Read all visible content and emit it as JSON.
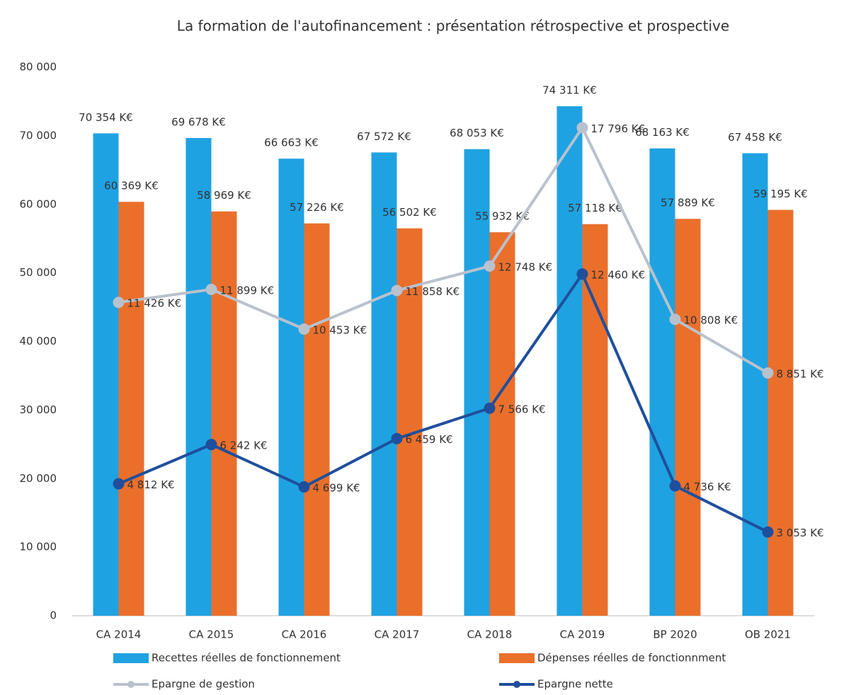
{
  "chart_data": {
    "type": "bar",
    "title": "La formation de l'autofinancement : présentation rétrospective et prospective",
    "categories": [
      "CA 2014",
      "CA 2015",
      "CA 2016",
      "CA 2017",
      "CA 2018",
      "CA 2019",
      "BP 2020",
      "OB 2021"
    ],
    "ylim": [
      0,
      80000
    ],
    "yticks": [
      0,
      {
        "value": 10000,
        "label": "10 000"
      },
      {
        "value": 20000,
        "label": "20 000"
      },
      {
        "value": 30000,
        "label": "30 000"
      },
      {
        "value": 40000,
        "label": "40 000"
      },
      {
        "value": 50000,
        "label": "50 000"
      },
      {
        "value": 60000,
        "label": "60 000"
      },
      {
        "value": 70000,
        "label": "70 000"
      },
      {
        "value": 80000,
        "label": "80 000"
      }
    ],
    "y2lim": [
      0,
      20000
    ],
    "series": [
      {
        "name": "Recettes réelles de fonctionnement",
        "type": "bar",
        "color": "#1fa2e2",
        "values": [
          70354,
          69678,
          66663,
          67572,
          68053,
          74311,
          68163,
          67458
        ],
        "value_labels": [
          "70 354 K€",
          "69 678 K€",
          "66 663 K€",
          "67 572 K€",
          "68 053 K€",
          "74 311 K€",
          "68 163 K€",
          "67 458 K€"
        ]
      },
      {
        "name": "Dépenses réelles de fonctionnment",
        "type": "bar",
        "color": "#ea6f2b",
        "values": [
          60369,
          58969,
          57226,
          56502,
          55932,
          57118,
          57889,
          59195
        ],
        "value_labels": [
          "60 369 K€",
          "58 969 K€",
          "57 226 K€",
          "56 502 K€",
          "55 932 K€",
          "57 118 K€",
          "57 889 K€",
          "59 195 K€"
        ]
      },
      {
        "name": "Epargne de gestion",
        "type": "line",
        "axis": "y2",
        "color": "#b9c1cc",
        "values": [
          11426,
          11899,
          10453,
          11858,
          12748,
          17796,
          10808,
          8851
        ],
        "value_labels": [
          "11 426 K€",
          "11 899 K€",
          "10 453 K€",
          "11 858 K€",
          "12 748 K€",
          "17 796 K€",
          "10 808 K€",
          "8 851 K€"
        ]
      },
      {
        "name": "Epargne nette",
        "type": "line",
        "axis": "y2",
        "color": "#1f4f9c",
        "values": [
          4812,
          6242,
          4699,
          6459,
          7566,
          12460,
          4736,
          3053
        ],
        "value_labels": [
          "4 812 K€",
          "6 242 K€",
          "4 699 K€",
          "6 459 K€",
          "7 566 K€",
          "12 460 K€",
          "4 736 K€",
          "3 053 K€"
        ]
      }
    ]
  }
}
